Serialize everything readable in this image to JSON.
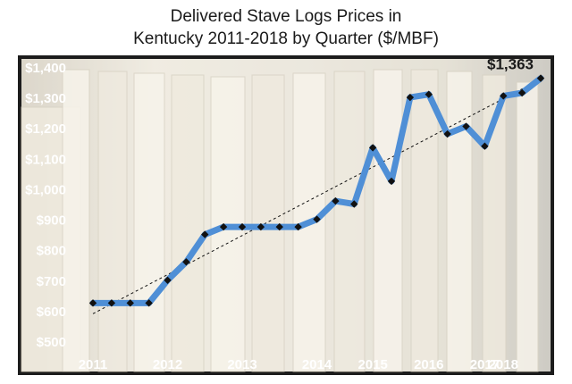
{
  "chart_data": {
    "type": "line",
    "title_line1": "Delivered Stave Logs Prices in",
    "title_line2": "Kentucky 2011-2018 by Quarter ($/MBF)",
    "xlabel": "",
    "ylabel": "",
    "ylim": [
      500,
      1400
    ],
    "yticks": [
      "$1,400",
      "$1,300",
      "$1,200",
      "$1,100",
      "$1,000",
      "$900",
      "$800",
      "$700",
      "$600",
      "$500"
    ],
    "ytick_values": [
      1400,
      1300,
      1200,
      1100,
      1000,
      900,
      800,
      700,
      600,
      500
    ],
    "year_labels": [
      {
        "label": "2011",
        "q": 0
      },
      {
        "label": "2012",
        "q": 4
      },
      {
        "label": "2013",
        "q": 8
      },
      {
        "label": "2014",
        "q": 12
      },
      {
        "label": "2015",
        "q": 15
      },
      {
        "label": "2016",
        "q": 18
      },
      {
        "label": "2017",
        "q": 21
      },
      {
        "label": "2018",
        "q": 22
      }
    ],
    "series": [
      {
        "values": [
          625,
          625,
          625,
          625,
          700,
          760,
          850,
          875,
          875,
          875,
          875,
          875,
          900,
          960,
          950,
          1135,
          1025,
          1300,
          1310,
          1180,
          1205,
          1140,
          1305,
          1315,
          1363
        ]
      }
    ],
    "trendline": {
      "style": "dashed",
      "start": 590,
      "end": 1360
    },
    "annotation": "$1,363",
    "grid": false,
    "legend": "none",
    "colors": {
      "line": "#4f8fd6",
      "marker": "#111111",
      "trend": "#111111",
      "tick_label": "#ffffff",
      "frame": "#1c1c1c"
    }
  }
}
